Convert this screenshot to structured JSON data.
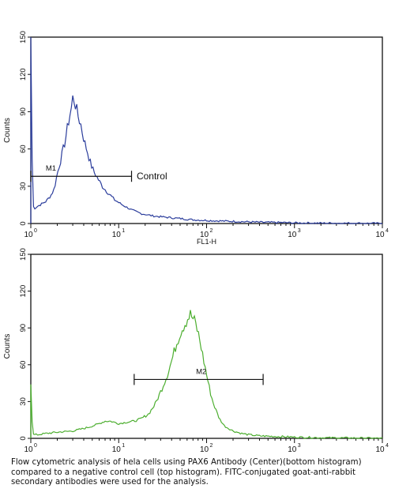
{
  "caption": "Flow cytometric analysis of hela cells using PAX6 Antibody (Center)(bottom histogram) compared to a negative control cell (top histogram). FITC-conjugated goat-anti-rabbit secondary antibodies were used for the analysis.",
  "chart_data": [
    {
      "type": "line",
      "title": "",
      "xlabel": "FL1-H",
      "ylabel": "Counts",
      "xscale": "log",
      "xlim": [
        1,
        10000
      ],
      "ylim": [
        0,
        150
      ],
      "yticks": [
        0,
        30,
        60,
        90,
        120,
        150
      ],
      "xtick_labels": [
        {
          "base": "10",
          "exp": "0"
        },
        {
          "base": "10",
          "exp": "1"
        },
        {
          "base": "10",
          "exp": "2"
        },
        {
          "base": "10",
          "exp": "3"
        },
        {
          "base": "10",
          "exp": "4"
        }
      ],
      "color": "#2b3d9c",
      "series": [
        {
          "x": [
            1.0,
            1.05,
            1.1,
            1.2,
            1.35,
            1.5,
            1.7,
            1.85,
            2.0,
            2.2,
            2.4,
            2.6,
            2.75,
            2.9,
            3.0,
            3.15,
            3.3,
            3.5,
            3.7,
            3.9,
            4.1,
            4.4,
            4.8,
            5.2,
            5.8,
            6.5,
            7.5,
            9,
            11,
            14,
            18,
            25,
            35,
            50,
            70,
            100,
            150,
            250,
            400,
            700,
            1000,
            2000,
            5000,
            10000
          ],
          "y": [
            150,
            15,
            12,
            14,
            16,
            18,
            23,
            28,
            40,
            52,
            63,
            76,
            86,
            93,
            101,
            99,
            92,
            85,
            80,
            72,
            65,
            58,
            48,
            42,
            36,
            30,
            25,
            19,
            15,
            11,
            8,
            6,
            5,
            4,
            3,
            2.5,
            2,
            1.5,
            1,
            0.8,
            0.5,
            0.3,
            0.2,
            0
          ]
        }
      ],
      "annotations": [
        {
          "text": "M1",
          "x_from": 1.0,
          "x_to": 14,
          "y": 38
        },
        {
          "text": "Control",
          "x": 16,
          "y": 38
        }
      ]
    },
    {
      "type": "line",
      "title": "",
      "xlabel": "",
      "ylabel": "Counts",
      "xscale": "log",
      "xlim": [
        1,
        10000
      ],
      "ylim": [
        0,
        150
      ],
      "yticks": [
        0,
        30,
        60,
        90,
        120,
        150
      ],
      "xtick_labels": [
        {
          "base": "10",
          "exp": "0"
        },
        {
          "base": "10",
          "exp": "1"
        },
        {
          "base": "10",
          "exp": "2"
        },
        {
          "base": "10",
          "exp": "3"
        },
        {
          "base": "10",
          "exp": "4"
        }
      ],
      "color": "#4cae2f",
      "series": [
        {
          "x": [
            1.0,
            1.05,
            1.2,
            1.5,
            2,
            3,
            4,
            5,
            6,
            7,
            8,
            9,
            10,
            12,
            15,
            18,
            22,
            26,
            30,
            35,
            40,
            45,
            50,
            55,
            60,
            65,
            68,
            72,
            76,
            80,
            85,
            90,
            100,
            110,
            120,
            140,
            160,
            200,
            250,
            300,
            400,
            600,
            1000,
            2000,
            10000
          ],
          "y": [
            44,
            3,
            3,
            4,
            5,
            6,
            8,
            10,
            12,
            14,
            14,
            13,
            12,
            13,
            14,
            16,
            20,
            28,
            38,
            50,
            63,
            76,
            86,
            92,
            97,
            101,
            99,
            96,
            92,
            86,
            78,
            68,
            52,
            38,
            28,
            16,
            10,
            6,
            4,
            3,
            2,
            1.5,
            1,
            0.5,
            0
          ]
        }
      ],
      "annotations": [
        {
          "text": "M2",
          "x_from": 15,
          "x_to": 440,
          "y": 48
        }
      ]
    }
  ]
}
